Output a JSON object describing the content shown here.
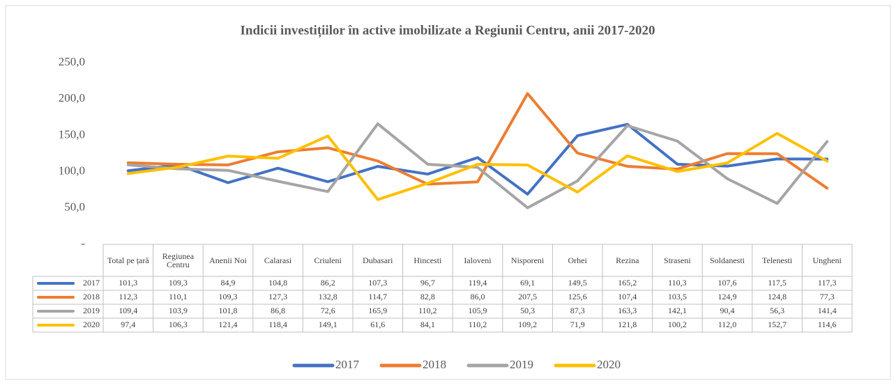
{
  "chart_data": {
    "type": "line",
    "title": "Indicii investițiilor în active imobilizate a Regiunii Centru, anii 2017-2020",
    "categories": [
      "Total pe țară",
      "Regiunea Centru",
      "Anenii Noi",
      "Calarasi",
      "Criuleni",
      "Dubasari",
      "Hincesti",
      "Ialoveni",
      "Nisporeni",
      "Orhei",
      "Rezina",
      "Straseni",
      "Soldanesti",
      "Telenesti",
      "Ungheni"
    ],
    "series": [
      {
        "name": "2017",
        "color": "#4472c4",
        "values": [
          101.3,
          109.3,
          84.9,
          104.8,
          86.2,
          107.3,
          96.7,
          119.4,
          69.1,
          149.5,
          165.2,
          110.3,
          107.6,
          117.5,
          117.3
        ],
        "value_labels": [
          "101,3",
          "109,3",
          "84,9",
          "104,8",
          "86,2",
          "107,3",
          "96,7",
          "119,4",
          "69,1",
          "149,5",
          "165,2",
          "110,3",
          "107,6",
          "117,5",
          "117,3"
        ]
      },
      {
        "name": "2018",
        "color": "#ed7d31",
        "values": [
          112.3,
          110.1,
          109.3,
          127.3,
          132.8,
          114.7,
          82.8,
          86.0,
          207.5,
          125.6,
          107.4,
          103.5,
          124.9,
          124.8,
          77.3
        ],
        "value_labels": [
          "112,3",
          "110,1",
          "109,3",
          "127,3",
          "132,8",
          "114,7",
          "82,8",
          "86,0",
          "207,5",
          "125,6",
          "107,4",
          "103,5",
          "124,9",
          "124,8",
          "77,3"
        ]
      },
      {
        "name": "2019",
        "color": "#a5a5a5",
        "values": [
          109.4,
          103.9,
          101.8,
          86.8,
          72.6,
          165.9,
          110.2,
          105.9,
          50.3,
          87.3,
          163.3,
          142.1,
          90.4,
          56.3,
          141.4
        ],
        "value_labels": [
          "109,4",
          "103,9",
          "101,8",
          "86,8",
          "72,6",
          "165,9",
          "110,2",
          "105,9",
          "50,3",
          "87,3",
          "163,3",
          "142,1",
          "90,4",
          "56,3",
          "141,4"
        ]
      },
      {
        "name": "2020",
        "color": "#ffc000",
        "values": [
          97.4,
          106.3,
          121.4,
          118.4,
          149.1,
          61.6,
          84.1,
          110.2,
          109.2,
          71.9,
          121.8,
          100.2,
          112.0,
          152.7,
          114.6
        ],
        "value_labels": [
          "97,4",
          "106,3",
          "121,4",
          "118,4",
          "149,1",
          "61,6",
          "84,1",
          "110,2",
          "109,2",
          "71,9",
          "121,8",
          "100,2",
          "112,0",
          "152,7",
          "114,6"
        ]
      }
    ],
    "ylim": [
      0,
      250
    ],
    "yticks": [
      {
        "value": 0,
        "label": "-"
      },
      {
        "value": 50,
        "label": "50,0"
      },
      {
        "value": 100,
        "label": "100,0"
      },
      {
        "value": 150,
        "label": "150,0"
      },
      {
        "value": 200,
        "label": "200,0"
      },
      {
        "value": 250,
        "label": "250,0"
      }
    ],
    "grid": false
  }
}
